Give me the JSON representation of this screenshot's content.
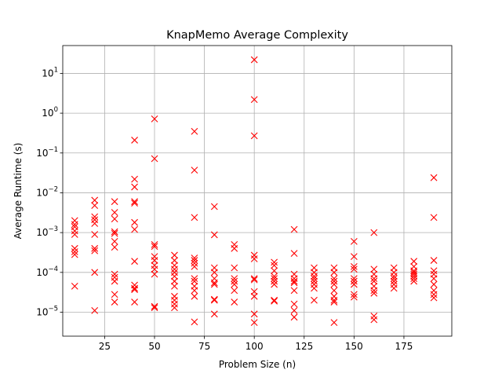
{
  "chart_data": {
    "type": "scatter",
    "title": "KnapMemo Average Complexity",
    "xlabel": "Problem Size (n)",
    "ylabel": "Average Runtime (s)",
    "xlim": [
      4,
      199
    ],
    "ylim": [
      2.5e-06,
      50
    ],
    "yscale": "log",
    "grid": true,
    "marker": "x",
    "marker_color": "#ff0000",
    "x_ticks": [
      {
        "value": 25,
        "label": "25"
      },
      {
        "value": 50,
        "label": "50"
      },
      {
        "value": 75,
        "label": "75"
      },
      {
        "value": 100,
        "label": "100"
      },
      {
        "value": 125,
        "label": "125"
      },
      {
        "value": 150,
        "label": "150"
      },
      {
        "value": 175,
        "label": "175"
      }
    ],
    "y_ticks": [
      {
        "value": 1e-05,
        "base": "10",
        "exp": "−5"
      },
      {
        "value": 0.0001,
        "base": "10",
        "exp": "−4"
      },
      {
        "value": 0.001,
        "base": "10",
        "exp": "−3"
      },
      {
        "value": 0.01,
        "base": "10",
        "exp": "−2"
      },
      {
        "value": 0.1,
        "base": "10",
        "exp": "−1"
      },
      {
        "value": 1,
        "base": "10",
        "exp": "0"
      },
      {
        "value": 10,
        "base": "10",
        "exp": "1"
      }
    ],
    "points": [
      {
        "x": 10,
        "y": 0.002
      },
      {
        "x": 10,
        "y": 0.0016
      },
      {
        "x": 10,
        "y": 0.0014
      },
      {
        "x": 10,
        "y": 0.0011
      },
      {
        "x": 10,
        "y": 0.0009
      },
      {
        "x": 10,
        "y": 0.0004
      },
      {
        "x": 10,
        "y": 0.00033
      },
      {
        "x": 10,
        "y": 0.00028
      },
      {
        "x": 10,
        "y": 4.5e-05
      },
      {
        "x": 20,
        "y": 0.0065
      },
      {
        "x": 20,
        "y": 0.0048
      },
      {
        "x": 20,
        "y": 0.0025
      },
      {
        "x": 20,
        "y": 0.0021
      },
      {
        "x": 20,
        "y": 0.0017
      },
      {
        "x": 20,
        "y": 0.0009
      },
      {
        "x": 20,
        "y": 0.0004
      },
      {
        "x": 20,
        "y": 0.00035
      },
      {
        "x": 20,
        "y": 0.0001
      },
      {
        "x": 20,
        "y": 1.1e-05
      },
      {
        "x": 30,
        "y": 0.006
      },
      {
        "x": 30,
        "y": 0.0032
      },
      {
        "x": 30,
        "y": 0.0022
      },
      {
        "x": 30,
        "y": 0.00105
      },
      {
        "x": 30,
        "y": 0.00095
      },
      {
        "x": 30,
        "y": 0.0006
      },
      {
        "x": 30,
        "y": 0.00043
      },
      {
        "x": 30,
        "y": 9e-05
      },
      {
        "x": 30,
        "y": 7.5e-05
      },
      {
        "x": 30,
        "y": 6e-05
      },
      {
        "x": 30,
        "y": 2.8e-05
      },
      {
        "x": 30,
        "y": 1.8e-05
      },
      {
        "x": 40,
        "y": 0.21
      },
      {
        "x": 40,
        "y": 0.022
      },
      {
        "x": 40,
        "y": 0.014
      },
      {
        "x": 40,
        "y": 0.006
      },
      {
        "x": 40,
        "y": 0.0055
      },
      {
        "x": 40,
        "y": 0.0018
      },
      {
        "x": 40,
        "y": 0.0012
      },
      {
        "x": 40,
        "y": 0.00019
      },
      {
        "x": 40,
        "y": 4.8e-05
      },
      {
        "x": 40,
        "y": 4e-05
      },
      {
        "x": 40,
        "y": 3.7e-05
      },
      {
        "x": 40,
        "y": 1.8e-05
      },
      {
        "x": 50,
        "y": 0.72
      },
      {
        "x": 50,
        "y": 0.072
      },
      {
        "x": 50,
        "y": 0.0005
      },
      {
        "x": 50,
        "y": 0.00045
      },
      {
        "x": 50,
        "y": 0.00025
      },
      {
        "x": 50,
        "y": 0.0002
      },
      {
        "x": 50,
        "y": 0.00015
      },
      {
        "x": 50,
        "y": 0.00012
      },
      {
        "x": 50,
        "y": 9e-05
      },
      {
        "x": 50,
        "y": 1.4e-05
      },
      {
        "x": 50,
        "y": 1.3e-05
      },
      {
        "x": 60,
        "y": 0.00027
      },
      {
        "x": 60,
        "y": 0.0002
      },
      {
        "x": 60,
        "y": 0.00015
      },
      {
        "x": 60,
        "y": 0.00012
      },
      {
        "x": 60,
        "y": 0.0001
      },
      {
        "x": 60,
        "y": 8e-05
      },
      {
        "x": 60,
        "y": 6e-05
      },
      {
        "x": 60,
        "y": 4.5e-05
      },
      {
        "x": 60,
        "y": 2.5e-05
      },
      {
        "x": 60,
        "y": 2e-05
      },
      {
        "x": 60,
        "y": 1.6e-05
      },
      {
        "x": 60,
        "y": 1.3e-05
      },
      {
        "x": 70,
        "y": 0.35
      },
      {
        "x": 70,
        "y": 0.037
      },
      {
        "x": 70,
        "y": 0.0024
      },
      {
        "x": 70,
        "y": 0.00023
      },
      {
        "x": 70,
        "y": 0.0002
      },
      {
        "x": 70,
        "y": 0.00017
      },
      {
        "x": 70,
        "y": 0.00014
      },
      {
        "x": 70,
        "y": 7e-05
      },
      {
        "x": 70,
        "y": 6e-05
      },
      {
        "x": 70,
        "y": 4.5e-05
      },
      {
        "x": 70,
        "y": 3.5e-05
      },
      {
        "x": 70,
        "y": 2.5e-05
      },
      {
        "x": 70,
        "y": 5.7e-06
      },
      {
        "x": 80,
        "y": 0.0045
      },
      {
        "x": 80,
        "y": 0.00088
      },
      {
        "x": 80,
        "y": 0.00013
      },
      {
        "x": 80,
        "y": 0.0001
      },
      {
        "x": 80,
        "y": 7e-05
      },
      {
        "x": 80,
        "y": 5.5e-05
      },
      {
        "x": 80,
        "y": 5e-05
      },
      {
        "x": 80,
        "y": 2.1e-05
      },
      {
        "x": 80,
        "y": 2e-05
      },
      {
        "x": 80,
        "y": 9e-06
      },
      {
        "x": 90,
        "y": 0.0005
      },
      {
        "x": 90,
        "y": 0.0004
      },
      {
        "x": 90,
        "y": 0.00013
      },
      {
        "x": 90,
        "y": 7e-05
      },
      {
        "x": 90,
        "y": 6e-05
      },
      {
        "x": 90,
        "y": 5e-05
      },
      {
        "x": 90,
        "y": 3.5e-05
      },
      {
        "x": 90,
        "y": 1.8e-05
      },
      {
        "x": 100,
        "y": 22
      },
      {
        "x": 100,
        "y": 2.2
      },
      {
        "x": 100,
        "y": 0.27
      },
      {
        "x": 100,
        "y": 0.00027
      },
      {
        "x": 100,
        "y": 0.00022
      },
      {
        "x": 100,
        "y": 7e-05
      },
      {
        "x": 100,
        "y": 6.5e-05
      },
      {
        "x": 100,
        "y": 3.3e-05
      },
      {
        "x": 100,
        "y": 2.5e-05
      },
      {
        "x": 100,
        "y": 9e-06
      },
      {
        "x": 100,
        "y": 5.5e-06
      },
      {
        "x": 110,
        "y": 0.00018
      },
      {
        "x": 110,
        "y": 0.00015
      },
      {
        "x": 110,
        "y": 0.00011
      },
      {
        "x": 110,
        "y": 8e-05
      },
      {
        "x": 110,
        "y": 7e-05
      },
      {
        "x": 110,
        "y": 6e-05
      },
      {
        "x": 110,
        "y": 5e-05
      },
      {
        "x": 110,
        "y": 2e-05
      },
      {
        "x": 110,
        "y": 1.9e-05
      },
      {
        "x": 120,
        "y": 0.0012
      },
      {
        "x": 120,
        "y": 0.0003
      },
      {
        "x": 120,
        "y": 9e-05
      },
      {
        "x": 120,
        "y": 7e-05
      },
      {
        "x": 120,
        "y": 6e-05
      },
      {
        "x": 120,
        "y": 5.5e-05
      },
      {
        "x": 120,
        "y": 3.5e-05
      },
      {
        "x": 120,
        "y": 1.6e-05
      },
      {
        "x": 120,
        "y": 1.1e-05
      },
      {
        "x": 120,
        "y": 7.5e-06
      },
      {
        "x": 130,
        "y": 0.00013
      },
      {
        "x": 130,
        "y": 0.0001
      },
      {
        "x": 130,
        "y": 8e-05
      },
      {
        "x": 130,
        "y": 7e-05
      },
      {
        "x": 130,
        "y": 6e-05
      },
      {
        "x": 130,
        "y": 5e-05
      },
      {
        "x": 130,
        "y": 4e-05
      },
      {
        "x": 130,
        "y": 2e-05
      },
      {
        "x": 140,
        "y": 0.00013
      },
      {
        "x": 140,
        "y": 0.0001
      },
      {
        "x": 140,
        "y": 7e-05
      },
      {
        "x": 140,
        "y": 6e-05
      },
      {
        "x": 140,
        "y": 5e-05
      },
      {
        "x": 140,
        "y": 3.5e-05
      },
      {
        "x": 140,
        "y": 2.5e-05
      },
      {
        "x": 140,
        "y": 2e-05
      },
      {
        "x": 140,
        "y": 1.8e-05
      },
      {
        "x": 140,
        "y": 5.5e-06
      },
      {
        "x": 150,
        "y": 0.0006
      },
      {
        "x": 150,
        "y": 0.00025
      },
      {
        "x": 150,
        "y": 0.00014
      },
      {
        "x": 150,
        "y": 0.00012
      },
      {
        "x": 150,
        "y": 7e-05
      },
      {
        "x": 150,
        "y": 6e-05
      },
      {
        "x": 150,
        "y": 5e-05
      },
      {
        "x": 150,
        "y": 2.8e-05
      },
      {
        "x": 150,
        "y": 2.4e-05
      },
      {
        "x": 160,
        "y": 0.001
      },
      {
        "x": 160,
        "y": 0.00012
      },
      {
        "x": 160,
        "y": 9e-05
      },
      {
        "x": 160,
        "y": 7e-05
      },
      {
        "x": 160,
        "y": 6e-05
      },
      {
        "x": 160,
        "y": 4.5e-05
      },
      {
        "x": 160,
        "y": 3.5e-05
      },
      {
        "x": 160,
        "y": 3e-05
      },
      {
        "x": 160,
        "y": 8e-06
      },
      {
        "x": 160,
        "y": 6.5e-06
      },
      {
        "x": 170,
        "y": 0.00013
      },
      {
        "x": 170,
        "y": 0.0001
      },
      {
        "x": 170,
        "y": 8e-05
      },
      {
        "x": 170,
        "y": 7e-05
      },
      {
        "x": 170,
        "y": 6e-05
      },
      {
        "x": 170,
        "y": 5e-05
      },
      {
        "x": 170,
        "y": 4e-05
      },
      {
        "x": 180,
        "y": 0.00019
      },
      {
        "x": 180,
        "y": 0.00014
      },
      {
        "x": 180,
        "y": 0.00011
      },
      {
        "x": 180,
        "y": 0.0001
      },
      {
        "x": 180,
        "y": 9e-05
      },
      {
        "x": 180,
        "y": 8e-05
      },
      {
        "x": 180,
        "y": 7e-05
      },
      {
        "x": 180,
        "y": 6e-05
      },
      {
        "x": 190,
        "y": 0.024
      },
      {
        "x": 190,
        "y": 0.0024
      },
      {
        "x": 190,
        "y": 0.0002
      },
      {
        "x": 190,
        "y": 0.00011
      },
      {
        "x": 190,
        "y": 9e-05
      },
      {
        "x": 190,
        "y": 7e-05
      },
      {
        "x": 190,
        "y": 5e-05
      },
      {
        "x": 190,
        "y": 3.5e-05
      },
      {
        "x": 190,
        "y": 2.8e-05
      },
      {
        "x": 190,
        "y": 2.3e-05
      }
    ]
  }
}
